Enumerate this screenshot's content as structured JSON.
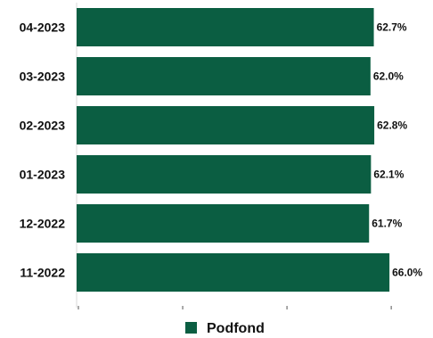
{
  "chart_data": {
    "type": "bar",
    "orientation": "horizontal",
    "categories": [
      "04-2023",
      "03-2023",
      "02-2023",
      "01-2023",
      "12-2022",
      "11-2022"
    ],
    "series": [
      {
        "name": "Podfond",
        "values": [
          62.7,
          62.0,
          62.8,
          62.1,
          61.7,
          66.0
        ],
        "value_labels": [
          "62.7%",
          "62.0%",
          "62.8%",
          "62.1%",
          "61.7%",
          "66.0%"
        ],
        "color": "#0b5e42"
      }
    ],
    "title": "",
    "xlabel": "",
    "ylabel": "",
    "xlim": [
      0,
      75
    ],
    "grid": false,
    "legend_position": "bottom"
  }
}
